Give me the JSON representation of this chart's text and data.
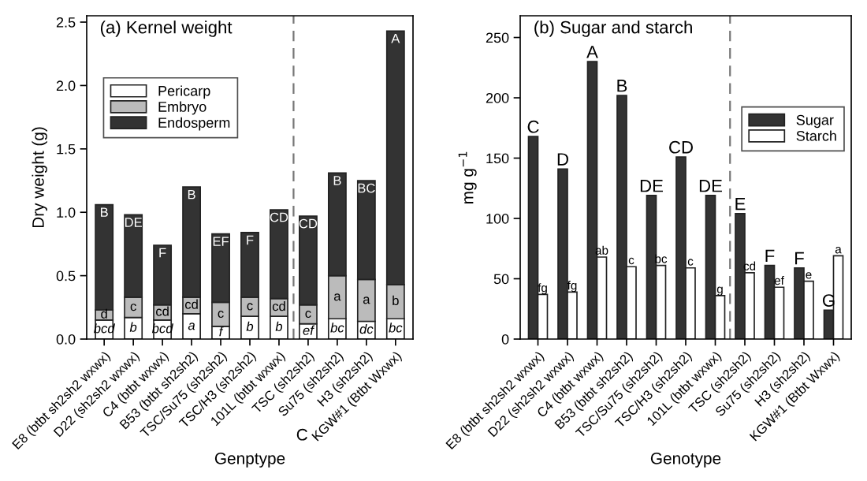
{
  "chart_data": [
    {
      "type": "bar",
      "title": "(a) Kernel weight",
      "xlabel": "Genptype",
      "ylabel": "Dry weight (g)",
      "stacked": true,
      "categories": [
        "E8 (btbt sh2sh2 wxwx)",
        "D22 (sh2sh2 wxwx)",
        "C4 (btbt wxwx)",
        "B53 (btbt sh2sh2)",
        "TSC/Su75 (sh2sh2)",
        "TSC/H3 (sh2sh2)",
        "101L (btbt wxwx)",
        "TSC (sh2sh2)",
        "Su75 (sh2sh2)",
        "H3 (sh2sh2)",
        "KGW#1 (Btbt Wxwx)"
      ],
      "series": [
        {
          "name": "Pericarp",
          "color": "#ffffff",
          "values": [
            0.15,
            0.17,
            0.15,
            0.2,
            0.1,
            0.18,
            0.18,
            0.12,
            0.16,
            0.14,
            0.16
          ],
          "value_labels": [
            "bcd",
            "b",
            "bcd",
            "a",
            "f",
            "b",
            "b",
            "ef",
            "bc",
            "dc",
            "bc"
          ]
        },
        {
          "name": "Embryo",
          "color": "#bbbbbb",
          "values": [
            0.08,
            0.16,
            0.12,
            0.13,
            0.19,
            0.15,
            0.14,
            0.15,
            0.34,
            0.33,
            0.27
          ],
          "value_labels": [
            "d",
            "c",
            "cd",
            "cd",
            "c",
            "c",
            "cd",
            "c",
            "a",
            "a",
            "b"
          ]
        },
        {
          "name": "Endosperm",
          "color": "#333333",
          "values": [
            0.83,
            0.65,
            0.47,
            0.87,
            0.54,
            0.51,
            0.7,
            0.7,
            0.81,
            0.78,
            2.0
          ],
          "value_labels": [
            "B",
            "DE",
            "F",
            "B",
            "EF",
            "F",
            "CD",
            "CD",
            "B",
            "BC",
            "A"
          ]
        }
      ],
      "ylim": [
        0,
        2.55
      ],
      "yticks": [
        {
          "value": 0,
          "label": "0.0"
        },
        {
          "value": 0.5,
          "label": "0.5"
        },
        {
          "value": 1,
          "label": "1.0"
        },
        {
          "value": 1.5,
          "label": "1.5"
        },
        {
          "value": 2,
          "label": "2.0"
        },
        {
          "value": 2.5,
          "label": "2.5"
        }
      ],
      "annotations": [
        "C"
      ],
      "legend": "top left",
      "grid": false
    },
    {
      "type": "bar",
      "title": "(b) Sugar and starch",
      "xlabel": "Genotype",
      "ylabel": "mg g$^{−1}$",
      "categories": [
        "E8 (btbt sh2sh2 wxwx)",
        "D22 (sh2sh2 wxwx)",
        "C4 (btbt wxwx)",
        "B53 (btbt sh2sh2)",
        "TSC/Su75 (sh2sh2)",
        "TSC/H3 (sh2sh2)",
        "101L (btbt wxwx)",
        "TSC (sh2sh2)",
        "Su75 (sh2sh2)",
        "H3 (sh2sh2)",
        "KGW#1 (Btbt Wxwx)"
      ],
      "series": [
        {
          "name": "Sugar",
          "color": "#333333",
          "values": [
            168,
            141,
            230,
            202,
            119,
            151,
            119,
            104,
            61,
            59,
            24
          ],
          "value_labels": [
            "C",
            "D",
            "A",
            "B",
            "DE",
            "CD",
            "DE",
            "E",
            "F",
            "F",
            "G"
          ]
        },
        {
          "name": "Starch",
          "color": "#ffffff",
          "values": [
            37,
            39,
            68,
            60,
            61,
            59,
            36,
            55,
            43,
            48,
            69
          ],
          "value_labels": [
            "fg",
            "fg",
            "ab",
            "c",
            "bc",
            "c",
            "g",
            "cd",
            "ef",
            "e",
            "a"
          ]
        }
      ],
      "ylim": [
        0,
        268
      ],
      "yticks": [
        0,
        50,
        100,
        150,
        200,
        250
      ],
      "legend": "right",
      "grid": false
    }
  ]
}
